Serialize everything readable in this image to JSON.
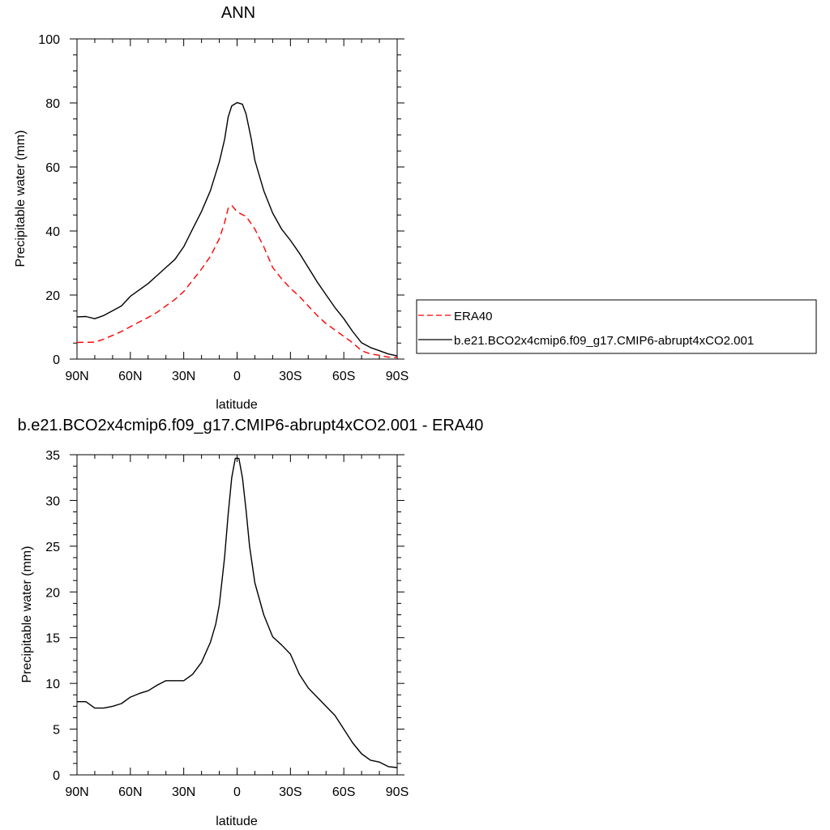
{
  "chart_data": [
    {
      "type": "line",
      "title": "ANN",
      "xlabel": "latitude",
      "ylabel": "Precipitable water (mm)",
      "xlim": [
        -90,
        90
      ],
      "ylim": [
        0,
        100
      ],
      "xticks": [
        -90,
        -60,
        -30,
        0,
        30,
        60,
        90
      ],
      "xtick_labels": [
        "90N",
        "60N",
        "30N",
        "0",
        "30S",
        "60S",
        "90S"
      ],
      "yticks": [
        0,
        20,
        40,
        60,
        80,
        100
      ],
      "ytick_labels": [
        "0",
        "20",
        "40",
        "60",
        "80",
        "100"
      ],
      "grid": false,
      "legend_position": "right",
      "series": [
        {
          "name": "ERA40",
          "color": "#ff0000",
          "dash": true,
          "x": [
            -90,
            -80,
            -75,
            -70,
            -65,
            -60,
            -55,
            -50,
            -45,
            -40,
            -35,
            -30,
            -25,
            -20,
            -15,
            -10,
            -7,
            -5,
            -3,
            0,
            3,
            5,
            10,
            15,
            20,
            25,
            30,
            35,
            40,
            45,
            50,
            55,
            60,
            65,
            70,
            75,
            80,
            85,
            90
          ],
          "values": [
            5.2,
            5.3,
            6.2,
            7.4,
            8.6,
            10.1,
            11.6,
            13.0,
            14.6,
            16.6,
            18.6,
            21.1,
            24.6,
            28.1,
            32.1,
            37.6,
            42.6,
            47.1,
            48.0,
            46.0,
            45.1,
            44.6,
            40.6,
            35.1,
            28.6,
            25.1,
            22.1,
            19.6,
            16.6,
            13.6,
            11.1,
            9.1,
            7.1,
            5.1,
            2.6,
            1.6,
            1.2,
            0.6,
            0.5
          ]
        },
        {
          "name": "b.e21.BCO2x4cmip6.f09_g17.CMIP6-abrupt4xCO2.001",
          "color": "#000000",
          "dash": false,
          "x": [
            -90,
            -85,
            -80,
            -75,
            -70,
            -65,
            -60,
            -55,
            -50,
            -45,
            -40,
            -35,
            -30,
            -25,
            -20,
            -15,
            -10,
            -7,
            -5,
            -3,
            0,
            3,
            5,
            8,
            10,
            15,
            20,
            25,
            30,
            35,
            40,
            45,
            50,
            55,
            60,
            65,
            70,
            75,
            80,
            85,
            90
          ],
          "values": [
            13.2,
            13.3,
            12.6,
            13.6,
            15.1,
            16.6,
            19.6,
            21.6,
            23.6,
            26.1,
            28.6,
            31.1,
            35.1,
            40.6,
            46.1,
            52.6,
            61.6,
            68.6,
            75.6,
            79.1,
            80.1,
            79.6,
            76.6,
            68.6,
            62.1,
            52.6,
            45.6,
            40.6,
            37.1,
            33.1,
            28.6,
            24.1,
            20.1,
            16.1,
            12.6,
            8.6,
            5.1,
            3.6,
            2.6,
            1.6,
            1.0
          ]
        }
      ]
    },
    {
      "type": "line",
      "title": "b.e21.BCO2x4cmip6.f09_g17.CMIP6-abrupt4xCO2.001 - ERA40",
      "xlabel": "latitude",
      "ylabel": "Precipitable water (mm)",
      "xlim": [
        -90,
        90
      ],
      "ylim": [
        0,
        35
      ],
      "xticks": [
        -90,
        -60,
        -30,
        0,
        30,
        60,
        90
      ],
      "xtick_labels": [
        "90N",
        "60N",
        "30N",
        "0",
        "30S",
        "60S",
        "90S"
      ],
      "yticks": [
        0,
        5,
        10,
        15,
        20,
        25,
        30,
        35
      ],
      "ytick_labels": [
        "0",
        "5",
        "10",
        "15",
        "20",
        "25",
        "30",
        "35"
      ],
      "grid": false,
      "series": [
        {
          "color": "#000000",
          "dash": false,
          "x": [
            -90,
            -85,
            -80,
            -75,
            -70,
            -65,
            -60,
            -55,
            -50,
            -45,
            -40,
            -35,
            -30,
            -25,
            -20,
            -15,
            -12,
            -10,
            -7,
            -5,
            -3,
            -1,
            1,
            3,
            5,
            7,
            10,
            15,
            20,
            25,
            30,
            35,
            40,
            45,
            50,
            55,
            60,
            65,
            70,
            75,
            80,
            85,
            90
          ],
          "values": [
            8.0,
            8.0,
            7.3,
            7.3,
            7.5,
            7.8,
            8.5,
            8.9,
            9.2,
            9.8,
            10.3,
            10.3,
            10.3,
            11.0,
            12.3,
            14.5,
            16.5,
            18.6,
            23.8,
            28.5,
            32.5,
            34.6,
            34.6,
            32.5,
            29.0,
            25.0,
            21.0,
            17.5,
            15.1,
            14.2,
            13.2,
            11.0,
            9.5,
            8.5,
            7.5,
            6.5,
            5.0,
            3.5,
            2.3,
            1.6,
            1.4,
            0.9,
            0.8
          ]
        }
      ]
    }
  ]
}
